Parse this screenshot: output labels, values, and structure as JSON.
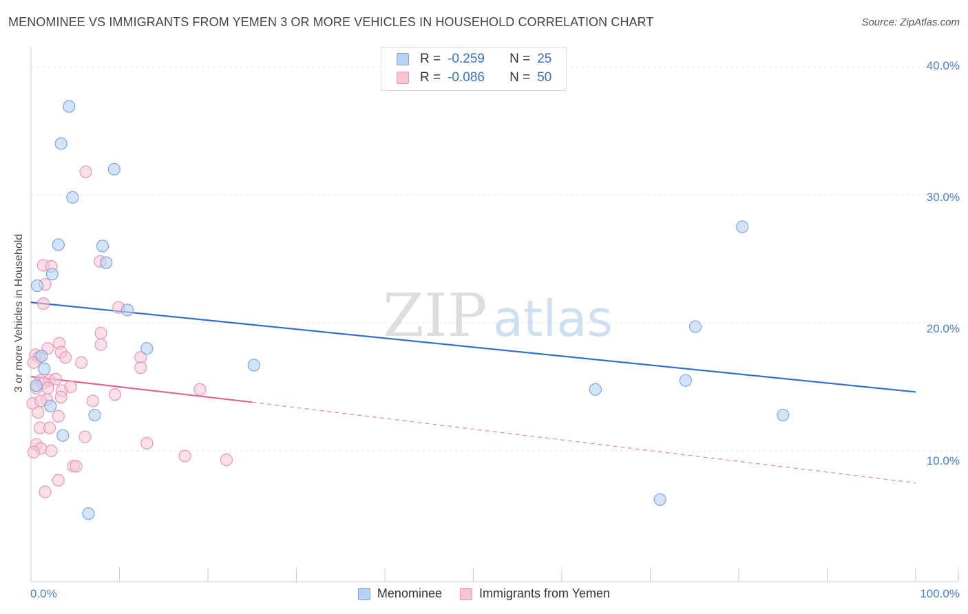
{
  "header": {
    "title": "MENOMINEE VS IMMIGRANTS FROM YEMEN 3 OR MORE VEHICLES IN HOUSEHOLD CORRELATION CHART",
    "source": "Source: ZipAtlas.com"
  },
  "watermark": {
    "zip": "ZIP",
    "atlas": "atlas"
  },
  "legend_top": {
    "r_label": "R =",
    "n_label": "N =",
    "rows": [
      {
        "r": "-0.259",
        "n": "25"
      },
      {
        "r": "-0.086",
        "n": "50"
      }
    ]
  },
  "colors": {
    "blue_fill": "#b7d2f3",
    "blue_stroke": "#7aa6e0",
    "blue_line": "#3070cc",
    "pink_fill": "#f8c4d5",
    "pink_stroke": "#e597b1",
    "pink_line": "#e0628f",
    "grid": "#e3e3e3",
    "tick_text": "#4a7cc9"
  },
  "chart_data": {
    "type": "scatter",
    "title": "MENOMINEE VS IMMIGRANTS FROM YEMEN 3 OR MORE VEHICLES IN HOUSEHOLD CORRELATION CHART",
    "xlabel": "",
    "ylabel": "3 or more Vehicles in Household",
    "xlim": [
      0,
      100
    ],
    "ylim": [
      0,
      40
    ],
    "x_tick_labels": [
      "0.0%",
      "100.0%"
    ],
    "y_ticks": [
      10,
      20,
      30,
      40
    ],
    "y_tick_labels": [
      "10.0%",
      "20.0%",
      "30.0%",
      "40.0%"
    ],
    "grid": true,
    "legend_position": "bottom-center",
    "series": [
      {
        "name": "Menominee",
        "color": "blue",
        "r": -0.259,
        "n": 25,
        "trend": {
          "x": [
            0,
            100
          ],
          "y": [
            21.6,
            14.6
          ]
        },
        "points": [
          {
            "x": 4.3,
            "y": 36.9
          },
          {
            "x": 3.4,
            "y": 34.0
          },
          {
            "x": 9.4,
            "y": 32.0
          },
          {
            "x": 4.7,
            "y": 29.8
          },
          {
            "x": 3.1,
            "y": 26.1
          },
          {
            "x": 8.1,
            "y": 26.0
          },
          {
            "x": 8.5,
            "y": 24.7
          },
          {
            "x": 2.4,
            "y": 23.8
          },
          {
            "x": 0.7,
            "y": 22.9
          },
          {
            "x": 10.9,
            "y": 21.0
          },
          {
            "x": 13.1,
            "y": 18.0
          },
          {
            "x": 1.2,
            "y": 17.4
          },
          {
            "x": 1.5,
            "y": 16.4
          },
          {
            "x": 0.6,
            "y": 15.1
          },
          {
            "x": 2.2,
            "y": 13.5
          },
          {
            "x": 7.2,
            "y": 12.8
          },
          {
            "x": 3.6,
            "y": 11.2
          },
          {
            "x": 6.5,
            "y": 5.1
          },
          {
            "x": 25.2,
            "y": 16.7
          },
          {
            "x": 80.4,
            "y": 27.5
          },
          {
            "x": 75.1,
            "y": 19.7
          },
          {
            "x": 63.8,
            "y": 14.8
          },
          {
            "x": 74.0,
            "y": 15.5
          },
          {
            "x": 85.0,
            "y": 12.8
          },
          {
            "x": 71.1,
            "y": 6.2
          }
        ]
      },
      {
        "name": "Immigrants from Yemen",
        "color": "pink",
        "r": -0.086,
        "n": 50,
        "trend_solid": {
          "x": [
            0,
            25
          ],
          "y": [
            15.8,
            13.8
          ]
        },
        "trend_dashed": {
          "x": [
            25,
            100
          ],
          "y": [
            13.8,
            7.5
          ]
        },
        "points": [
          {
            "x": 6.2,
            "y": 31.8
          },
          {
            "x": 7.8,
            "y": 24.8
          },
          {
            "x": 1.4,
            "y": 24.5
          },
          {
            "x": 2.3,
            "y": 24.4
          },
          {
            "x": 1.6,
            "y": 23.0
          },
          {
            "x": 1.4,
            "y": 21.5
          },
          {
            "x": 9.9,
            "y": 21.2
          },
          {
            "x": 7.9,
            "y": 19.2
          },
          {
            "x": 3.2,
            "y": 18.4
          },
          {
            "x": 7.9,
            "y": 18.3
          },
          {
            "x": 1.9,
            "y": 18.0
          },
          {
            "x": 3.4,
            "y": 17.7
          },
          {
            "x": 0.5,
            "y": 17.5
          },
          {
            "x": 0.9,
            "y": 17.3
          },
          {
            "x": 3.9,
            "y": 17.3
          },
          {
            "x": 12.4,
            "y": 17.3
          },
          {
            "x": 0.3,
            "y": 16.9
          },
          {
            "x": 5.7,
            "y": 16.9
          },
          {
            "x": 12.4,
            "y": 16.5
          },
          {
            "x": 1.1,
            "y": 15.5
          },
          {
            "x": 2.1,
            "y": 15.5
          },
          {
            "x": 1.4,
            "y": 15.3
          },
          {
            "x": 0.6,
            "y": 14.9
          },
          {
            "x": 3.5,
            "y": 14.7
          },
          {
            "x": 19.1,
            "y": 14.8
          },
          {
            "x": 9.5,
            "y": 14.4
          },
          {
            "x": 3.4,
            "y": 14.2
          },
          {
            "x": 1.8,
            "y": 14.0
          },
          {
            "x": 0.2,
            "y": 13.7
          },
          {
            "x": 1.1,
            "y": 13.9
          },
          {
            "x": 7.0,
            "y": 13.9
          },
          {
            "x": 3.1,
            "y": 12.7
          },
          {
            "x": 1.0,
            "y": 11.8
          },
          {
            "x": 2.1,
            "y": 11.8
          },
          {
            "x": 6.1,
            "y": 11.1
          },
          {
            "x": 13.1,
            "y": 10.6
          },
          {
            "x": 0.6,
            "y": 10.5
          },
          {
            "x": 1.1,
            "y": 10.2
          },
          {
            "x": 2.3,
            "y": 10.0
          },
          {
            "x": 0.3,
            "y": 9.9
          },
          {
            "x": 17.4,
            "y": 9.6
          },
          {
            "x": 22.1,
            "y": 9.3
          },
          {
            "x": 4.8,
            "y": 8.8
          },
          {
            "x": 5.1,
            "y": 8.8
          },
          {
            "x": 3.1,
            "y": 7.7
          },
          {
            "x": 1.6,
            "y": 6.8
          },
          {
            "x": 1.9,
            "y": 14.9
          },
          {
            "x": 2.8,
            "y": 15.6
          },
          {
            "x": 0.8,
            "y": 13.0
          },
          {
            "x": 4.5,
            "y": 15.0
          }
        ]
      }
    ]
  }
}
